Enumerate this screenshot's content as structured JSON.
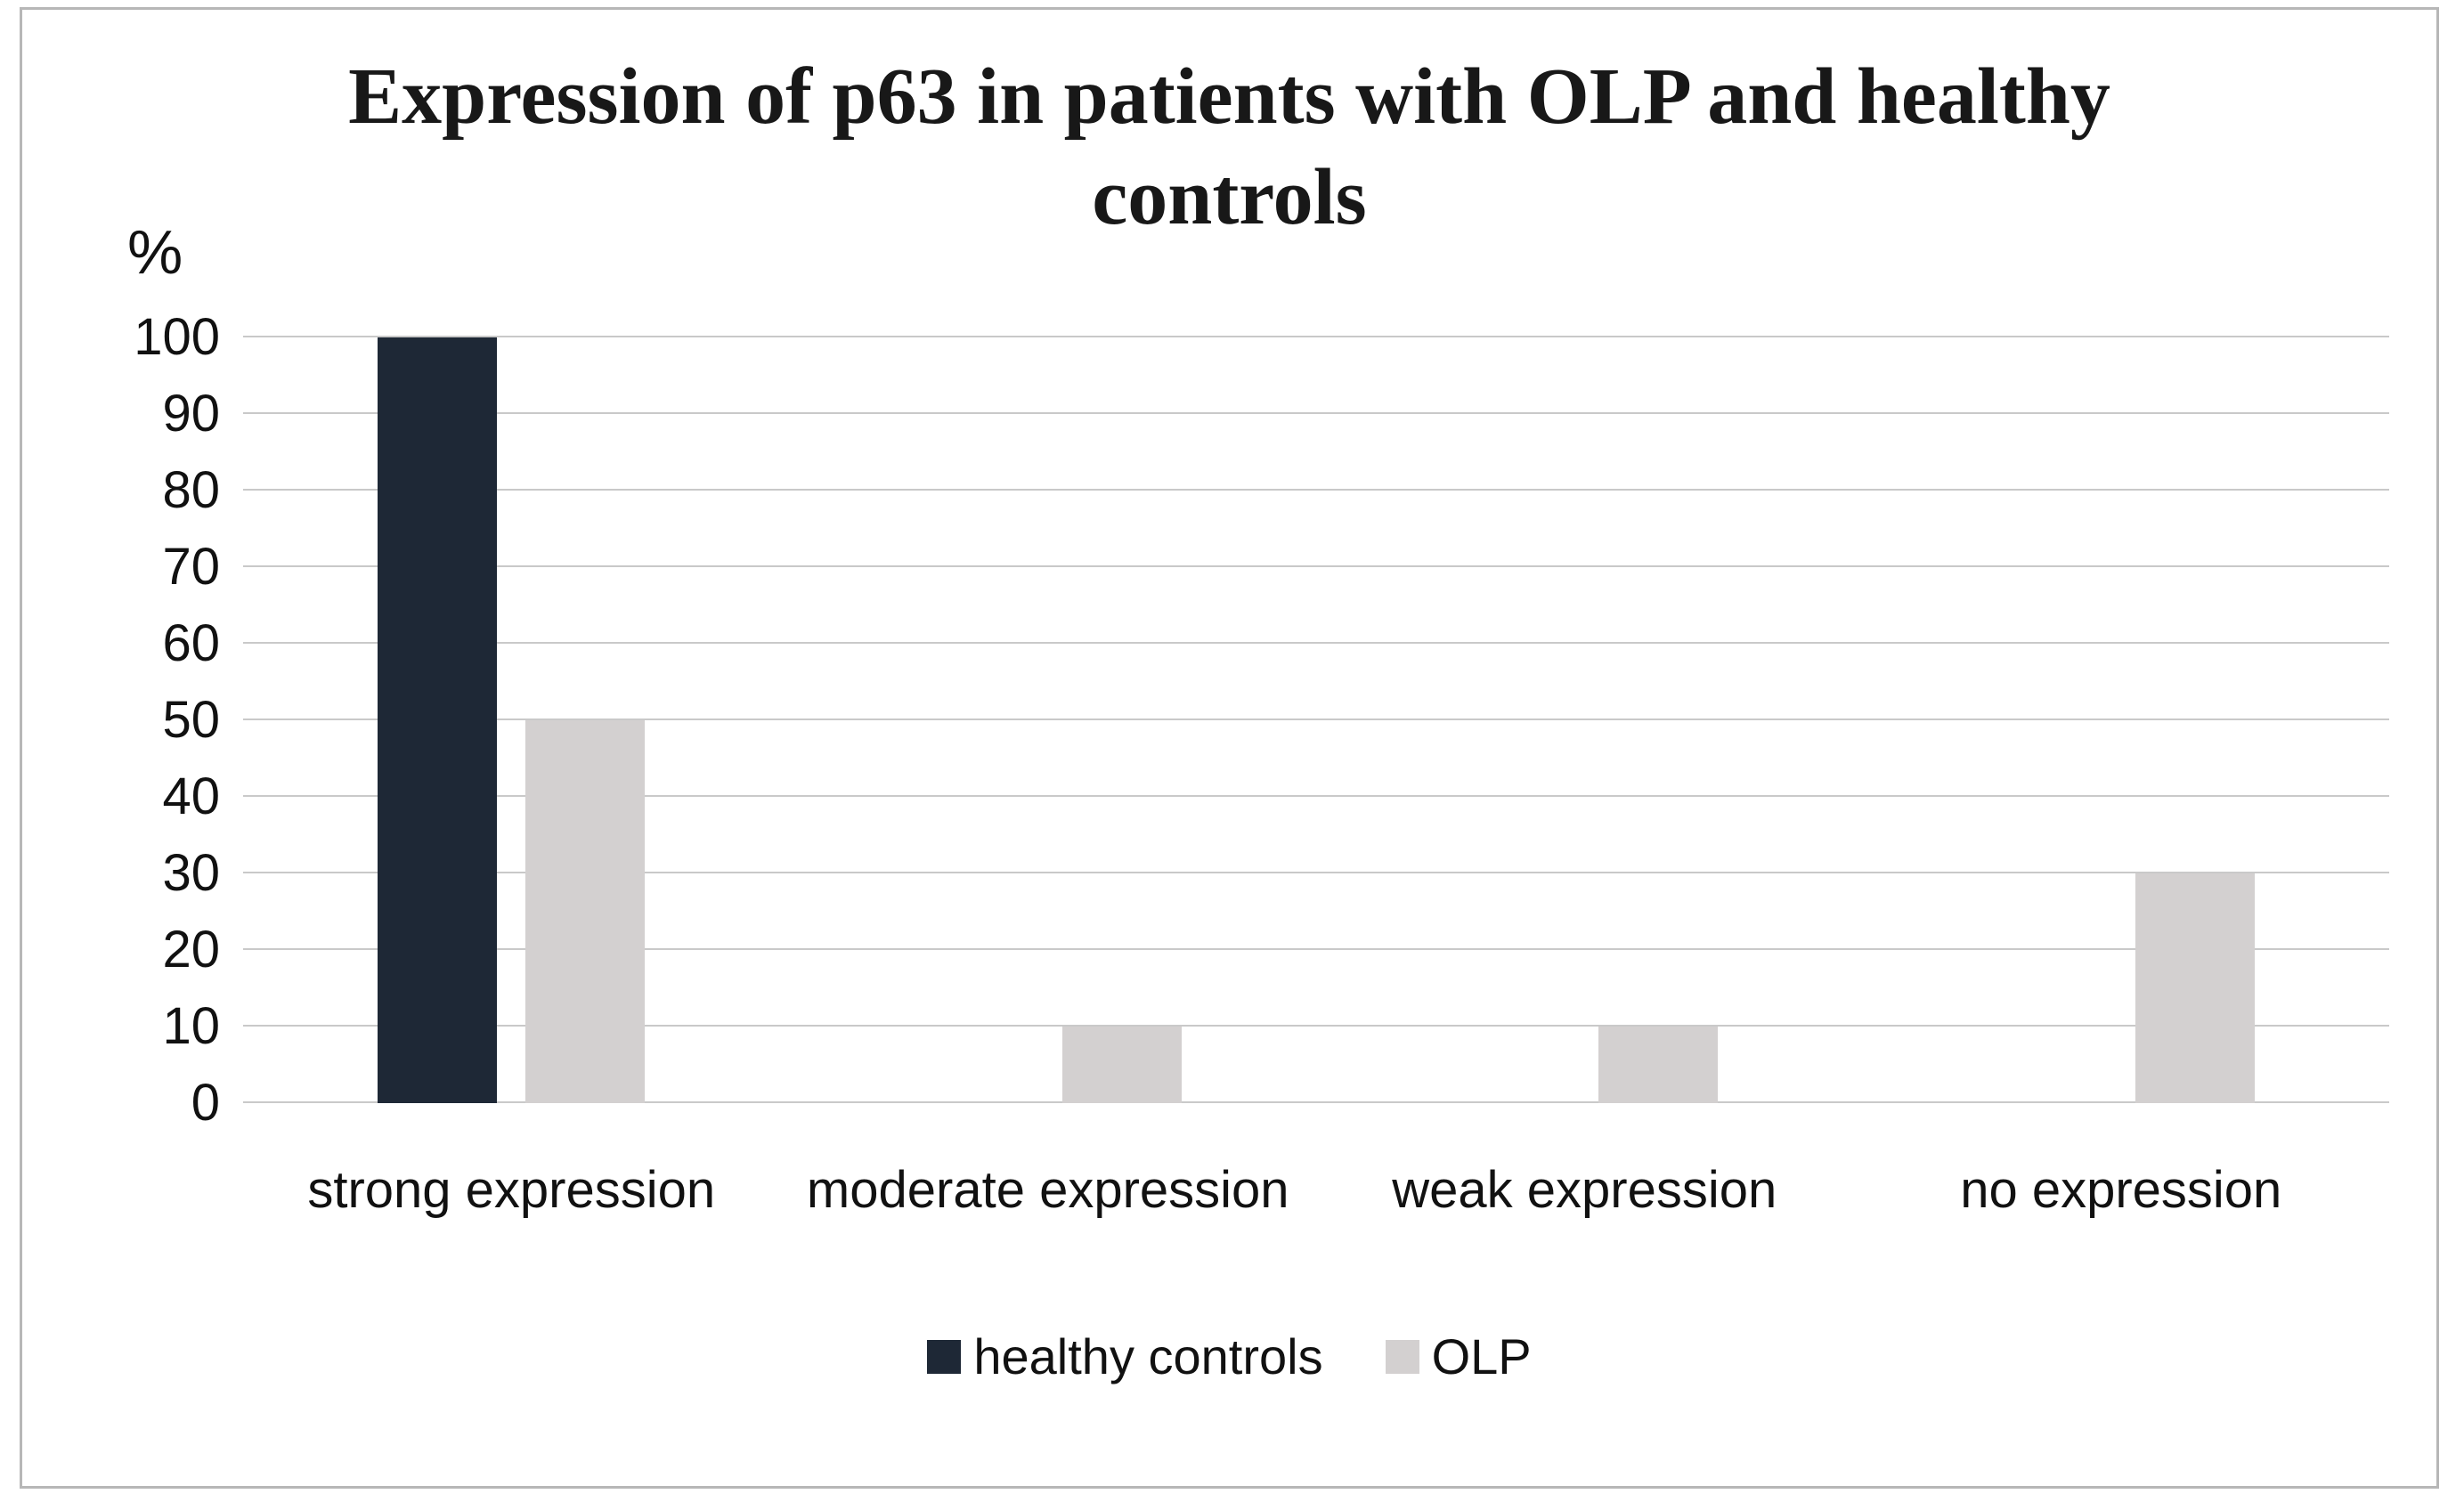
{
  "chart_data": {
    "type": "bar",
    "title": "Expression of p63 in patients with OLP and healthy controls",
    "ylabel": "%",
    "xlabel": "",
    "categories": [
      "strong expression",
      "moderate expression",
      "weak expression",
      "no expression"
    ],
    "series": [
      {
        "name": "healthy controls",
        "color": "#1e2836",
        "values": [
          100,
          0,
          0,
          0
        ]
      },
      {
        "name": "OLP",
        "color": "#d3d0d0",
        "values": [
          50,
          10,
          10,
          30
        ]
      }
    ],
    "ylim": [
      0,
      100
    ],
    "ytick_step": 10,
    "grid": true,
    "legend_position": "bottom",
    "gridline_color": "#c9c9c9"
  }
}
